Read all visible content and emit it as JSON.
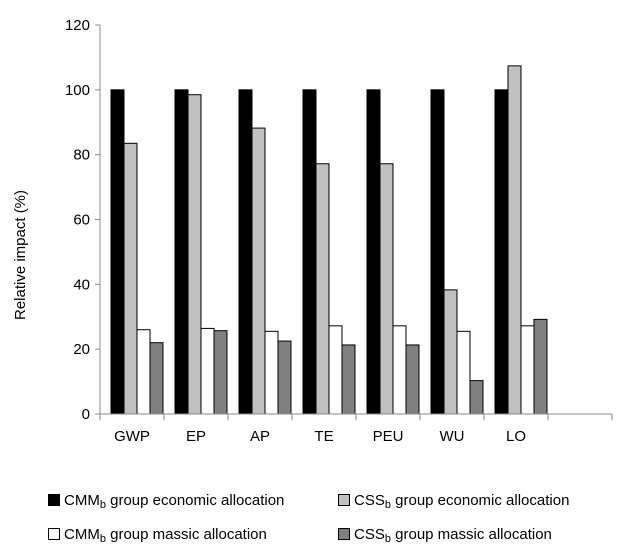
{
  "chart_data": {
    "type": "bar",
    "title": "",
    "xlabel": "",
    "ylabel": "Relative impact (%)",
    "ylim": [
      0,
      120
    ],
    "yticks": [
      0,
      20,
      40,
      60,
      80,
      100,
      120
    ],
    "categories": [
      "GWP",
      "EP",
      "AP",
      "TE",
      "PEU",
      "WU",
      "LO"
    ],
    "series": [
      {
        "name_main": "CMM",
        "name_sub": "b",
        "name_rest": " group economic allocation",
        "color": "#000000",
        "values": [
          100,
          100,
          100,
          100,
          100,
          100,
          100
        ]
      },
      {
        "name_main": "CSS",
        "name_sub": "b",
        "name_rest": " group economic allocation",
        "color": "#c0c0c0",
        "values": [
          83.5,
          98.5,
          88.2,
          77.2,
          77.2,
          38.3,
          107.4
        ]
      },
      {
        "name_main": "CMM",
        "name_sub": "b",
        "name_rest": " group massic allocation",
        "color": "#ffffff",
        "values": [
          26.0,
          26.4,
          25.5,
          27.2,
          27.2,
          25.5,
          27.2
        ]
      },
      {
        "name_main": "CSS",
        "name_sub": "b",
        "name_rest": " group massic allocation",
        "color": "#808080",
        "values": [
          22.0,
          25.7,
          22.5,
          21.3,
          21.3,
          10.3,
          29.2
        ]
      }
    ],
    "grid": false,
    "legend_position": "bottom"
  }
}
